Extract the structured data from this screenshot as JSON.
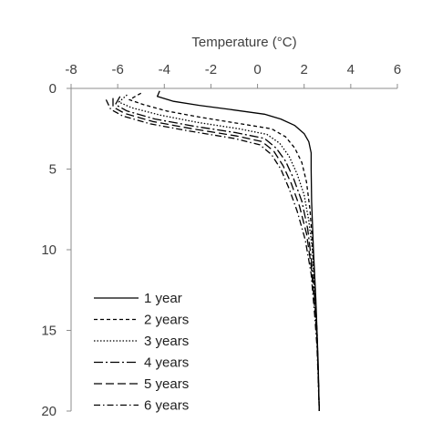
{
  "chart_data": {
    "type": "line",
    "title": "Temperature (°C)",
    "x_axis_position": "top",
    "y_axis_reversed": true,
    "xlim": [
      -8,
      6
    ],
    "ylim": [
      0,
      20
    ],
    "x_ticks": [
      "-8",
      "-6",
      "-4",
      "-2",
      "0",
      "2",
      "4",
      "6"
    ],
    "y_ticks": [
      "0",
      "5",
      "10",
      "15",
      "20"
    ],
    "grid": false,
    "legend_position": "bottom-left",
    "series": [
      {
        "name": "1 year",
        "dash": "solid",
        "points": [
          [
            -4.2,
            0.15
          ],
          [
            -4.3,
            0.5
          ],
          [
            -3.6,
            0.8
          ],
          [
            -2.5,
            1.05
          ],
          [
            -1.2,
            1.3
          ],
          [
            0.3,
            1.6
          ],
          [
            1.0,
            1.9
          ],
          [
            1.6,
            2.3
          ],
          [
            2.0,
            2.8
          ],
          [
            2.2,
            3.3
          ],
          [
            2.3,
            4.0
          ],
          [
            2.3,
            5.0
          ],
          [
            2.32,
            7.0
          ],
          [
            2.4,
            10.0
          ],
          [
            2.5,
            13.0
          ],
          [
            2.55,
            15.0
          ],
          [
            2.6,
            17.0
          ],
          [
            2.65,
            20.0
          ]
        ]
      },
      {
        "name": "2 years",
        "dash": "4,3",
        "points": [
          [
            -5.0,
            0.3
          ],
          [
            -5.5,
            0.7
          ],
          [
            -4.9,
            1.0
          ],
          [
            -3.9,
            1.4
          ],
          [
            -2.4,
            1.8
          ],
          [
            -0.7,
            2.2
          ],
          [
            0.6,
            2.5
          ],
          [
            1.2,
            3.0
          ],
          [
            1.6,
            3.7
          ],
          [
            1.9,
            4.6
          ],
          [
            2.1,
            5.8
          ],
          [
            2.25,
            7.5
          ],
          [
            2.35,
            9.5
          ],
          [
            2.45,
            12.0
          ],
          [
            2.55,
            15.0
          ],
          [
            2.6,
            17.5
          ],
          [
            2.65,
            20.0
          ]
        ]
      },
      {
        "name": "3 years",
        "dash": "1.5,2",
        "points": [
          [
            -5.6,
            0.4
          ],
          [
            -5.95,
            0.85
          ],
          [
            -5.4,
            1.2
          ],
          [
            -4.2,
            1.65
          ],
          [
            -2.6,
            2.1
          ],
          [
            -0.8,
            2.5
          ],
          [
            0.4,
            2.85
          ],
          [
            0.95,
            3.4
          ],
          [
            1.35,
            4.2
          ],
          [
            1.7,
            5.3
          ],
          [
            2.0,
            6.6
          ],
          [
            2.2,
            8.2
          ],
          [
            2.35,
            10.0
          ],
          [
            2.45,
            12.5
          ],
          [
            2.55,
            15.0
          ],
          [
            2.6,
            17.5
          ],
          [
            2.65,
            20.0
          ]
        ]
      },
      {
        "name": "4 years",
        "dash": "10,3,2,3",
        "points": [
          [
            -5.9,
            0.5
          ],
          [
            -6.1,
            1.0
          ],
          [
            -5.6,
            1.4
          ],
          [
            -4.4,
            1.9
          ],
          [
            -2.7,
            2.35
          ],
          [
            -0.9,
            2.75
          ],
          [
            0.3,
            3.1
          ],
          [
            0.8,
            3.7
          ],
          [
            1.2,
            4.5
          ],
          [
            1.55,
            5.6
          ],
          [
            1.9,
            7.0
          ],
          [
            2.15,
            8.7
          ],
          [
            2.3,
            10.5
          ],
          [
            2.45,
            13.0
          ],
          [
            2.55,
            15.5
          ],
          [
            2.6,
            17.5
          ],
          [
            2.65,
            20.0
          ]
        ]
      },
      {
        "name": "5 years",
        "dash": "9,4",
        "points": [
          [
            -6.2,
            0.6
          ],
          [
            -6.2,
            1.15
          ],
          [
            -5.7,
            1.55
          ],
          [
            -4.5,
            2.05
          ],
          [
            -2.8,
            2.5
          ],
          [
            -0.9,
            2.95
          ],
          [
            0.2,
            3.3
          ],
          [
            0.7,
            3.9
          ],
          [
            1.1,
            4.8
          ],
          [
            1.45,
            5.9
          ],
          [
            1.8,
            7.3
          ],
          [
            2.1,
            9.0
          ],
          [
            2.3,
            11.0
          ],
          [
            2.45,
            13.5
          ],
          [
            2.55,
            15.5
          ],
          [
            2.6,
            17.5
          ],
          [
            2.65,
            20.0
          ]
        ]
      },
      {
        "name": "6 years",
        "dash": "7,3,1.5,3",
        "points": [
          [
            -6.5,
            0.7
          ],
          [
            -6.3,
            1.3
          ],
          [
            -5.8,
            1.7
          ],
          [
            -4.6,
            2.2
          ],
          [
            -2.9,
            2.65
          ],
          [
            -1.0,
            3.1
          ],
          [
            0.1,
            3.5
          ],
          [
            0.6,
            4.1
          ],
          [
            1.0,
            5.0
          ],
          [
            1.35,
            6.2
          ],
          [
            1.7,
            7.6
          ],
          [
            2.05,
            9.4
          ],
          [
            2.3,
            11.5
          ],
          [
            2.45,
            14.0
          ],
          [
            2.55,
            16.0
          ],
          [
            2.6,
            18.0
          ],
          [
            2.65,
            20.0
          ]
        ]
      }
    ]
  }
}
